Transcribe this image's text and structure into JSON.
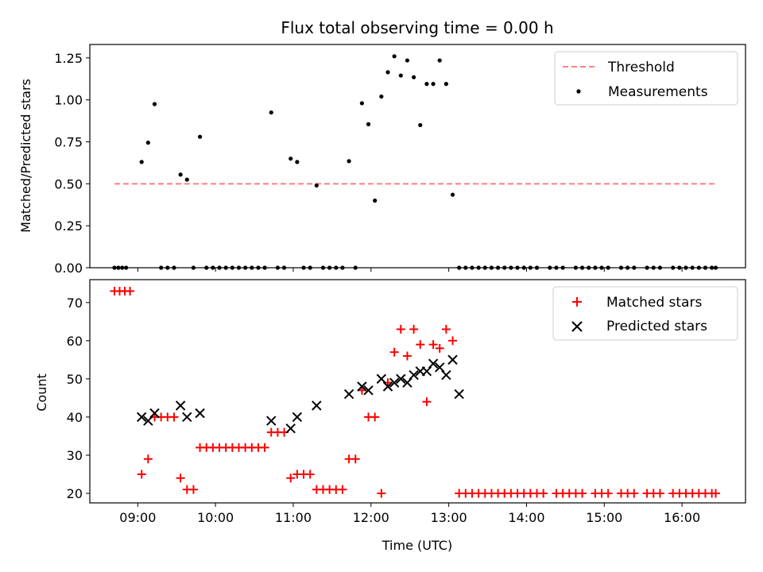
{
  "chart_data": [
    {
      "type": "scatter",
      "title": "Flux total observing time = 0.00 h",
      "xlabel": "",
      "ylabel": "Matched/Predicted stars",
      "xlim": [
        "08:23",
        "16:49"
      ],
      "ylim": [
        0,
        1.33
      ],
      "x_tick_labels": [
        "09:00",
        "10:00",
        "11:00",
        "12:00",
        "13:00",
        "14:00",
        "15:00",
        "16:00"
      ],
      "y_tick_labels": [
        "0.00",
        "0.25",
        "0.50",
        "0.75",
        "1.00",
        "1.25"
      ],
      "legend": {
        "position": "upper-right",
        "entries": [
          "Threshold",
          "Measurements"
        ]
      },
      "threshold": {
        "name": "Threshold",
        "value": 0.5,
        "x_range": [
          "08:42",
          "16:26"
        ],
        "color": "#ff7f7f",
        "style": "dashed"
      },
      "series": [
        {
          "name": "Measurements",
          "color": "#000000",
          "marker": "dot",
          "points": [
            [
              "08:42",
              0
            ],
            [
              "08:45",
              0
            ],
            [
              "08:48",
              0
            ],
            [
              "08:51",
              0
            ],
            [
              "09:03",
              0.63
            ],
            [
              "09:08",
              0.745
            ],
            [
              "09:13",
              0.975
            ],
            [
              "09:18",
              0
            ],
            [
              "09:23",
              0
            ],
            [
              "09:28",
              0
            ],
            [
              "09:33",
              0.555
            ],
            [
              "09:38",
              0.525
            ],
            [
              "09:43",
              0
            ],
            [
              "09:48",
              0.78
            ],
            [
              "09:53",
              0
            ],
            [
              "09:58",
              0
            ],
            [
              "10:03",
              0
            ],
            [
              "10:08",
              0
            ],
            [
              "10:13",
              0
            ],
            [
              "10:18",
              0
            ],
            [
              "10:23",
              0
            ],
            [
              "10:28",
              0
            ],
            [
              "10:33",
              0
            ],
            [
              "10:38",
              0
            ],
            [
              "10:43",
              0.925
            ],
            [
              "10:48",
              0
            ],
            [
              "10:53",
              0
            ],
            [
              "10:58",
              0.65
            ],
            [
              "11:03",
              0.63
            ],
            [
              "11:08",
              0
            ],
            [
              "11:13",
              0
            ],
            [
              "11:18",
              0.49
            ],
            [
              "11:23",
              0
            ],
            [
              "11:28",
              0
            ],
            [
              "11:33",
              0
            ],
            [
              "11:38",
              0
            ],
            [
              "11:43",
              0.635
            ],
            [
              "11:48",
              0
            ],
            [
              "11:53",
              0.98
            ],
            [
              "11:58",
              0.855
            ],
            [
              "12:03",
              0.4
            ],
            [
              "12:08",
              1.02
            ],
            [
              "12:13",
              1.165
            ],
            [
              "12:18",
              1.26
            ],
            [
              "12:23",
              1.145
            ],
            [
              "12:28",
              1.235
            ],
            [
              "12:33",
              1.135
            ],
            [
              "12:38",
              0.85
            ],
            [
              "12:43",
              1.095
            ],
            [
              "12:48",
              1.095
            ],
            [
              "12:53",
              1.235
            ],
            [
              "12:58",
              1.095
            ],
            [
              "13:03",
              0.435
            ],
            [
              "13:08",
              0
            ],
            [
              "13:13",
              0
            ],
            [
              "13:18",
              0
            ],
            [
              "13:23",
              0
            ],
            [
              "13:28",
              0
            ],
            [
              "13:33",
              0
            ],
            [
              "13:38",
              0
            ],
            [
              "13:43",
              0
            ],
            [
              "13:48",
              0
            ],
            [
              "13:53",
              0
            ],
            [
              "13:58",
              0
            ],
            [
              "14:03",
              0
            ],
            [
              "14:08",
              0
            ],
            [
              "14:18",
              0
            ],
            [
              "14:23",
              0
            ],
            [
              "14:28",
              0
            ],
            [
              "14:38",
              0
            ],
            [
              "14:43",
              0
            ],
            [
              "14:48",
              0
            ],
            [
              "14:53",
              0
            ],
            [
              "14:58",
              0
            ],
            [
              "15:03",
              0
            ],
            [
              "15:13",
              0
            ],
            [
              "15:18",
              0
            ],
            [
              "15:23",
              0
            ],
            [
              "15:33",
              0
            ],
            [
              "15:38",
              0
            ],
            [
              "15:43",
              0
            ],
            [
              "15:53",
              0
            ],
            [
              "15:58",
              0
            ],
            [
              "16:03",
              0
            ],
            [
              "16:08",
              0
            ],
            [
              "16:13",
              0
            ],
            [
              "16:18",
              0
            ],
            [
              "16:23",
              0
            ],
            [
              "16:26",
              0
            ]
          ]
        }
      ]
    },
    {
      "type": "scatter",
      "title": "",
      "xlabel": "Time (UTC)",
      "ylabel": "Count",
      "xlim": [
        "08:23",
        "16:49"
      ],
      "ylim": [
        17.5,
        76
      ],
      "x_tick_labels": [
        "09:00",
        "10:00",
        "11:00",
        "12:00",
        "13:00",
        "14:00",
        "15:00",
        "16:00"
      ],
      "y_tick_labels": [
        "20",
        "30",
        "40",
        "50",
        "60",
        "70"
      ],
      "legend": {
        "position": "upper-right",
        "entries": [
          "Matched stars",
          "Predicted stars"
        ]
      },
      "series": [
        {
          "name": "Matched stars",
          "color": "#ff0000",
          "marker": "plus",
          "points": [
            [
              "08:42",
              73
            ],
            [
              "08:46",
              73
            ],
            [
              "08:50",
              73
            ],
            [
              "08:54",
              73
            ],
            [
              "09:03",
              25
            ],
            [
              "09:08",
              29
            ],
            [
              "09:13",
              40
            ],
            [
              "09:18",
              40
            ],
            [
              "09:23",
              40
            ],
            [
              "09:28",
              40
            ],
            [
              "09:33",
              24
            ],
            [
              "09:38",
              21
            ],
            [
              "09:43",
              21
            ],
            [
              "09:48",
              32
            ],
            [
              "09:53",
              32
            ],
            [
              "09:58",
              32
            ],
            [
              "10:03",
              32
            ],
            [
              "10:08",
              32
            ],
            [
              "10:13",
              32
            ],
            [
              "10:18",
              32
            ],
            [
              "10:23",
              32
            ],
            [
              "10:28",
              32
            ],
            [
              "10:33",
              32
            ],
            [
              "10:38",
              32
            ],
            [
              "10:43",
              36
            ],
            [
              "10:48",
              36
            ],
            [
              "10:53",
              36
            ],
            [
              "10:58",
              24
            ],
            [
              "11:03",
              25
            ],
            [
              "11:08",
              25
            ],
            [
              "11:13",
              25
            ],
            [
              "11:18",
              21
            ],
            [
              "11:23",
              21
            ],
            [
              "11:28",
              21
            ],
            [
              "11:33",
              21
            ],
            [
              "11:38",
              21
            ],
            [
              "11:43",
              29
            ],
            [
              "11:48",
              29
            ],
            [
              "11:53",
              47
            ],
            [
              "11:58",
              40
            ],
            [
              "12:03",
              40
            ],
            [
              "12:08",
              20
            ],
            [
              "12:13",
              49
            ],
            [
              "12:18",
              57
            ],
            [
              "12:23",
              63
            ],
            [
              "12:28",
              56
            ],
            [
              "12:33",
              63
            ],
            [
              "12:38",
              59
            ],
            [
              "12:43",
              44
            ],
            [
              "12:48",
              59
            ],
            [
              "12:53",
              58
            ],
            [
              "12:58",
              63
            ],
            [
              "13:03",
              60
            ],
            [
              "13:08",
              20
            ],
            [
              "13:13",
              20
            ],
            [
              "13:18",
              20
            ],
            [
              "13:23",
              20
            ],
            [
              "13:28",
              20
            ],
            [
              "13:33",
              20
            ],
            [
              "13:38",
              20
            ],
            [
              "13:43",
              20
            ],
            [
              "13:48",
              20
            ],
            [
              "13:53",
              20
            ],
            [
              "13:58",
              20
            ],
            [
              "14:03",
              20
            ],
            [
              "14:08",
              20
            ],
            [
              "14:13",
              20
            ],
            [
              "14:23",
              20
            ],
            [
              "14:28",
              20
            ],
            [
              "14:33",
              20
            ],
            [
              "14:38",
              20
            ],
            [
              "14:43",
              20
            ],
            [
              "14:53",
              20
            ],
            [
              "14:58",
              20
            ],
            [
              "15:03",
              20
            ],
            [
              "15:13",
              20
            ],
            [
              "15:18",
              20
            ],
            [
              "15:23",
              20
            ],
            [
              "15:33",
              20
            ],
            [
              "15:38",
              20
            ],
            [
              "15:43",
              20
            ],
            [
              "15:53",
              20
            ],
            [
              "15:58",
              20
            ],
            [
              "16:03",
              20
            ],
            [
              "16:08",
              20
            ],
            [
              "16:13",
              20
            ],
            [
              "16:18",
              20
            ],
            [
              "16:23",
              20
            ],
            [
              "16:26",
              20
            ]
          ]
        },
        {
          "name": "Predicted stars",
          "color": "#000000",
          "marker": "x",
          "points": [
            [
              "09:03",
              40
            ],
            [
              "09:08",
              39
            ],
            [
              "09:13",
              41
            ],
            [
              "09:33",
              43
            ],
            [
              "09:38",
              40
            ],
            [
              "09:48",
              41
            ],
            [
              "10:43",
              39
            ],
            [
              "10:58",
              37
            ],
            [
              "11:03",
              40
            ],
            [
              "11:18",
              43
            ],
            [
              "11:43",
              46
            ],
            [
              "11:53",
              48
            ],
            [
              "11:58",
              47
            ],
            [
              "12:08",
              50
            ],
            [
              "12:13",
              48
            ],
            [
              "12:18",
              49
            ],
            [
              "12:23",
              50
            ],
            [
              "12:28",
              49
            ],
            [
              "12:33",
              51
            ],
            [
              "12:38",
              52
            ],
            [
              "12:43",
              52
            ],
            [
              "12:48",
              54
            ],
            [
              "12:53",
              53
            ],
            [
              "12:58",
              51
            ],
            [
              "13:03",
              55
            ],
            [
              "13:08",
              46
            ]
          ]
        }
      ]
    }
  ]
}
